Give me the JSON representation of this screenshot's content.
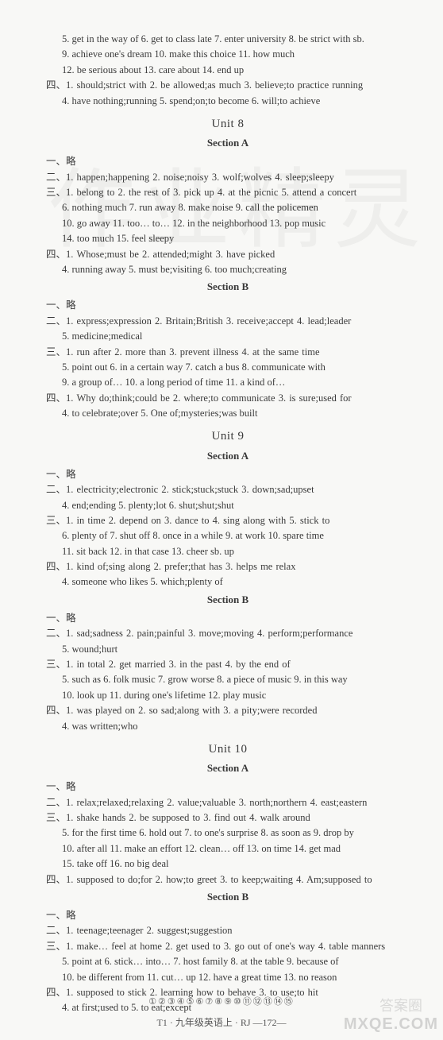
{
  "bg_watermark": "作业精灵",
  "top_block": {
    "lines": [
      "5. get in the way of  6. get to class late  7. enter university  8. be strict with sb.",
      "9. achieve one's dream  10. make this choice  11. how much",
      "12. be serious about  13. care about  14. end up"
    ],
    "q4": [
      "四、1. should;strict with  2. be allowed;as much  3. believe;to practice running",
      "4. have nothing;running  5. spend;on;to become  6. will;to achieve"
    ]
  },
  "unit8": {
    "title": "Unit 8",
    "secA": {
      "title": "Section A",
      "q1": "一、略",
      "q2": "二、1. happen;happening  2. noise;noisy  3. wolf;wolves  4. sleep;sleepy",
      "q3": [
        "三、1. belong to  2. the rest of  3. pick up  4. at the picnic  5. attend a concert",
        "6. nothing much  7. run away  8. make noise  9. call the policemen",
        "10. go away  11. too… to…  12. in the neighborhood  13. pop music",
        "14. too much  15. feel sleepy"
      ],
      "q4": [
        "四、1. Whose;must be  2. attended;might  3. have picked",
        "4. running away  5. must be;visiting  6. too much;creating"
      ]
    },
    "secB": {
      "title": "Section B",
      "q1": "一、略",
      "q2": [
        "二、1. express;expression  2. Britain;British  3. receive;accept  4. lead;leader",
        "5. medicine;medical"
      ],
      "q3": [
        "三、1. run after  2. more than  3. prevent illness  4. at the same time",
        "5. point out  6. in a certain way  7. catch a bus  8. communicate with",
        "9. a group of…  10. a long period of time  11. a kind of…"
      ],
      "q4": [
        "四、1. Why do;think;could be  2. where;to communicate  3. is sure;used for",
        "4. to celebrate;over  5. One of;mysteries;was built"
      ]
    }
  },
  "unit9": {
    "title": "Unit 9",
    "secA": {
      "title": "Section A",
      "q1": "一、略",
      "q2": [
        "二、1. electricity;electronic  2. stick;stuck;stuck  3. down;sad;upset",
        "4. end;ending  5. plenty;lot  6. shut;shut;shut"
      ],
      "q3": [
        "三、1. in time  2. depend on  3. dance to  4. sing along with  5. stick to",
        "6. plenty of  7. shut off  8. once in a while  9. at work  10. spare time",
        "11. sit back  12. in that case  13. cheer sb. up"
      ],
      "q4": [
        "四、1. kind of;sing along  2. prefer;that has  3. helps me relax",
        "4. someone who likes  5. which;plenty of"
      ]
    },
    "secB": {
      "title": "Section B",
      "q1": "一、略",
      "q2": [
        "二、1. sad;sadness  2. pain;painful  3. move;moving  4. perform;performance",
        "5. wound;hurt"
      ],
      "q3": [
        "三、1. in total  2. get married  3. in the past  4. by the end of",
        "5. such as  6. folk music  7. grow worse  8. a piece of music  9. in this way",
        "10. look up  11. during one's lifetime  12. play music"
      ],
      "q4": [
        "四、1. was played on  2. so sad;along with  3. a pity;were recorded",
        "4. was written;who"
      ]
    }
  },
  "unit10": {
    "title": "Unit 10",
    "secA": {
      "title": "Section A",
      "q1": "一、略",
      "q2": "二、1. relax;relaxed;relaxing  2. value;valuable  3. north;northern  4. east;eastern",
      "q3": [
        "三、1. shake hands  2. be supposed to  3. find out  4. walk around",
        "5. for the first time  6. hold out  7. to one's surprise  8. as soon as  9. drop by",
        "10. after all  11. make an effort  12. clean… off  13. on time  14. get mad",
        "15. take off  16. no big deal"
      ],
      "q4": "四、1. supposed to do;for  2. how;to greet  3. to keep;waiting  4. Am;supposed to"
    },
    "secB": {
      "title": "Section B",
      "q1": "一、略",
      "q2": "二、1. teenage;teenager  2. suggest;suggestion",
      "q3": [
        "三、1. make… feel at home  2. get used to  3. go out of one's way  4. table manners",
        "5. point at  6. stick… into…  7. host family  8. at the table  9. because of",
        "10. be different from  11. cut… up  12. have a great time  13. no reason"
      ],
      "q4": [
        "四、1. supposed to stick  2. learning how to behave  3. to use;to hit",
        "4. at first;used to  5. to eat;except"
      ]
    }
  },
  "footer": {
    "circles": "①②③④⑤⑥⑦⑧⑨⑩⑪⑫⑬⑭⑮",
    "bottom": "T1 · 九年级英语上 · RJ —172—"
  },
  "wm1": "MXQE.COM",
  "wm2": "答案圈"
}
